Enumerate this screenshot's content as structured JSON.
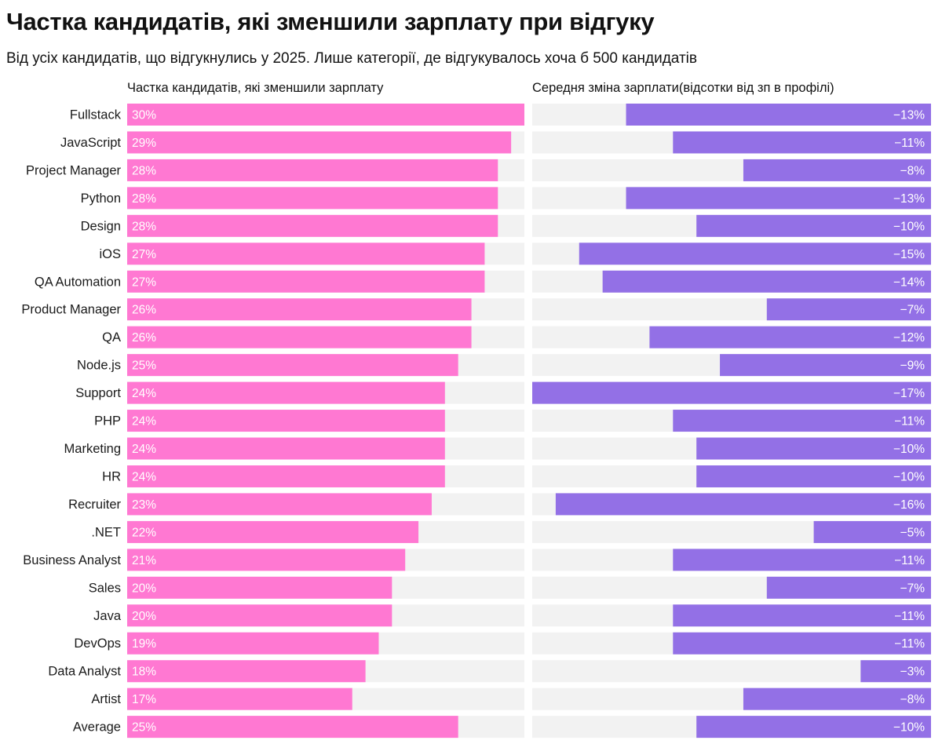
{
  "title": "Частка кандидатів, які зменшили зарплату при відгуку",
  "subtitle": "Від усіх кандидатів, що відгукнулись у 2025. Лише категорії, де відгукувалось хоча б 500 кандидатів",
  "colors": {
    "share": "#ff78d2",
    "change": "#9370e6",
    "track": "#f2f2f2"
  },
  "chart_data": [
    {
      "type": "bar",
      "orientation": "horizontal",
      "title": "Частка кандидатів, які зменшили зарплату",
      "categories": [
        "Fullstack",
        "JavaScript",
        "Project Manager",
        "Python",
        "Design",
        "iOS",
        "QA Automation",
        "Product Manager",
        "QA",
        "Node.js",
        "Support",
        "PHP",
        "Marketing",
        "HR",
        "Recruiter",
        ".NET",
        "Business Analyst",
        "Sales",
        "Java",
        "DevOps",
        "Data Analyst",
        "Artist",
        "Average"
      ],
      "values": [
        30,
        29,
        28,
        28,
        28,
        27,
        27,
        26,
        26,
        25,
        24,
        24,
        24,
        24,
        23,
        22,
        21,
        20,
        20,
        19,
        18,
        17,
        25
      ],
      "value_labels": [
        "30%",
        "29%",
        "28%",
        "28%",
        "28%",
        "27%",
        "27%",
        "26%",
        "26%",
        "25%",
        "24%",
        "24%",
        "24%",
        "24%",
        "23%",
        "22%",
        "21%",
        "20%",
        "20%",
        "19%",
        "18%",
        "17%",
        "25%"
      ],
      "unit": "%",
      "xlim": [
        0,
        30
      ]
    },
    {
      "type": "bar",
      "orientation": "horizontal",
      "title": "Середня зміна зарплати(відсотки від зп в профілі)",
      "categories": [
        "Fullstack",
        "JavaScript",
        "Project Manager",
        "Python",
        "Design",
        "iOS",
        "QA Automation",
        "Product Manager",
        "QA",
        "Node.js",
        "Support",
        "PHP",
        "Marketing",
        "HR",
        "Recruiter",
        ".NET",
        "Business Analyst",
        "Sales",
        "Java",
        "DevOps",
        "Data Analyst",
        "Artist",
        "Average"
      ],
      "values": [
        -13,
        -11,
        -8,
        -13,
        -10,
        -15,
        -14,
        -7,
        -12,
        -9,
        -17,
        -11,
        -10,
        -10,
        -16,
        -5,
        -11,
        -7,
        -11,
        -11,
        -3,
        -8,
        -10
      ],
      "value_labels": [
        "−13%",
        "−11%",
        "−8%",
        "−13%",
        "−10%",
        "−15%",
        "−14%",
        "−7%",
        "−12%",
        "−9%",
        "−17%",
        "−11%",
        "−10%",
        "−10%",
        "−16%",
        "−5%",
        "−11%",
        "−7%",
        "−11%",
        "−11%",
        "−3%",
        "−8%",
        "−10%"
      ],
      "unit": "%",
      "xlim": [
        -17,
        0
      ]
    }
  ]
}
